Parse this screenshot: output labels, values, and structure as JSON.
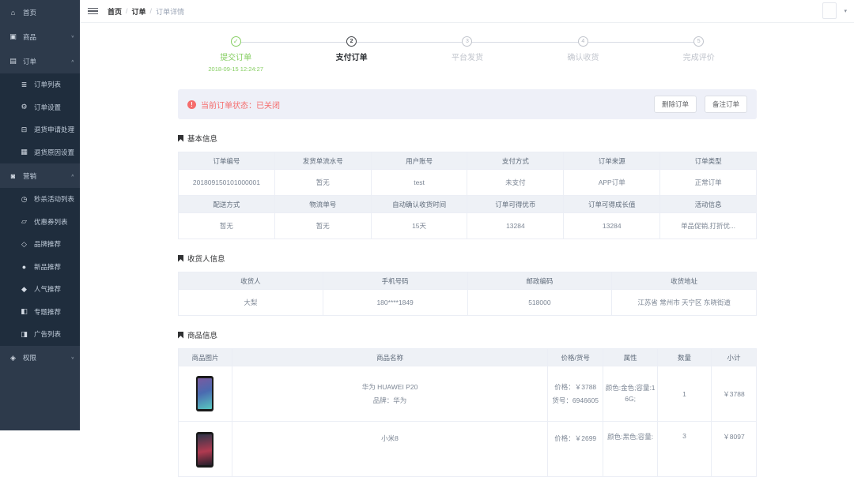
{
  "topbar": {
    "breadcrumb": [
      {
        "id": "home",
        "label": "首页",
        "current": false
      },
      {
        "id": "order",
        "label": "订单",
        "current": false
      },
      {
        "id": "order-detail",
        "label": "订单详情",
        "current": true
      }
    ],
    "breadcrumb_separator": "/",
    "user_caret": "▾"
  },
  "sidebar": {
    "items": [
      {
        "id": "home",
        "label": "首页",
        "icon": "home-icon",
        "glyph": "⌂",
        "type": "root",
        "chevron": ""
      },
      {
        "id": "goods",
        "label": "商品",
        "icon": "goods-icon",
        "glyph": "▣",
        "type": "root",
        "chevron": "down"
      },
      {
        "id": "order",
        "label": "订单",
        "icon": "order-icon",
        "glyph": "▤",
        "type": "root",
        "chevron": "up"
      },
      {
        "id": "order-list",
        "label": "订单列表",
        "icon": "order-list-icon",
        "glyph": "≣",
        "type": "sub",
        "chevron": ""
      },
      {
        "id": "order-setting",
        "label": "订单设置",
        "icon": "order-setting-icon",
        "glyph": "⚙",
        "type": "sub",
        "chevron": ""
      },
      {
        "id": "return-apply",
        "label": "退货申请处理",
        "icon": "return-apply-icon",
        "glyph": "⊟",
        "type": "sub",
        "chevron": ""
      },
      {
        "id": "return-reason",
        "label": "退货原因设置",
        "icon": "return-reason-icon",
        "glyph": "▦",
        "type": "sub",
        "chevron": ""
      },
      {
        "id": "marketing",
        "label": "营销",
        "icon": "marketing-icon",
        "glyph": "◙",
        "type": "root",
        "chevron": "up"
      },
      {
        "id": "flash-list",
        "label": "秒杀活动列表",
        "icon": "flash-sale-icon",
        "glyph": "◷",
        "type": "sub",
        "chevron": ""
      },
      {
        "id": "coupon-list",
        "label": "优惠券列表",
        "icon": "coupon-icon",
        "glyph": "▱",
        "type": "sub",
        "chevron": ""
      },
      {
        "id": "brand",
        "label": "品牌推荐",
        "icon": "brand-tag-icon",
        "glyph": "◇",
        "type": "sub",
        "chevron": ""
      },
      {
        "id": "new-product",
        "label": "新品推荐",
        "icon": "new-product-icon",
        "glyph": "●",
        "type": "sub",
        "chevron": ""
      },
      {
        "id": "hot",
        "label": "人气推荐",
        "icon": "hot-icon",
        "glyph": "◆",
        "type": "sub",
        "chevron": ""
      },
      {
        "id": "subject",
        "label": "专题推荐",
        "icon": "subject-icon",
        "glyph": "◧",
        "type": "sub",
        "chevron": ""
      },
      {
        "id": "advertise",
        "label": "广告列表",
        "icon": "advertise-icon",
        "glyph": "◨",
        "type": "sub",
        "chevron": ""
      },
      {
        "id": "permission",
        "label": "权限",
        "icon": "permission-icon",
        "glyph": "◈",
        "type": "root",
        "chevron": "down"
      }
    ],
    "chevron_up": "∧",
    "chevron_down": "∨"
  },
  "steps": [
    {
      "num": "1",
      "label": "提交订单",
      "time": "2018-09-15 12:24:27",
      "state": "done",
      "glyph": "✓"
    },
    {
      "num": "2",
      "label": "支付订单",
      "time": "",
      "state": "active",
      "glyph": "2"
    },
    {
      "num": "3",
      "label": "平台发货",
      "time": "",
      "state": "pending",
      "glyph": "3"
    },
    {
      "num": "4",
      "label": "确认收货",
      "time": "",
      "state": "pending",
      "glyph": "4"
    },
    {
      "num": "5",
      "label": "完成评价",
      "time": "",
      "state": "pending",
      "glyph": "5"
    }
  ],
  "alert": {
    "icon_glyph": "!",
    "text": "当前订单状态：已关闭",
    "buttons": [
      {
        "id": "delete-order",
        "label": "删除订单"
      },
      {
        "id": "note-order",
        "label": "备注订单"
      }
    ]
  },
  "basic_info": {
    "title": "基本信息",
    "rows": [
      {
        "headers": [
          "订单编号",
          "发货单流水号",
          "用户账号",
          "支付方式",
          "订单来源",
          "订单类型"
        ],
        "values": [
          "201809150101000001",
          "暂无",
          "test",
          "未支付",
          "APP订单",
          "正常订单"
        ]
      },
      {
        "headers": [
          "配送方式",
          "物流单号",
          "自动确认收货时间",
          "订单可得优币",
          "订单可得成长值",
          "活动信息"
        ],
        "values": [
          "暂无",
          "暂无",
          "15天",
          "13284",
          "13284",
          "单品促销,打折优..."
        ]
      }
    ]
  },
  "recipient_info": {
    "title": "收货人信息",
    "headers": [
      "收货人",
      "手机号码",
      "邮政编码",
      "收货地址"
    ],
    "values": [
      "大梨",
      "180****1849",
      "518000",
      "江苏省 常州市 天宁区 东晓街道"
    ]
  },
  "product_info": {
    "title": "商品信息",
    "headers": [
      "商品图片",
      "商品名称",
      "价格/货号",
      "属性",
      "数量",
      "小计"
    ],
    "rows": [
      {
        "image": "huawei-p20-photo",
        "image_class": "p20",
        "name_lines": [
          "华为 HUAWEI P20",
          "品牌：华为"
        ],
        "price_lines": [
          "价格：￥3788",
          "货号：6946605"
        ],
        "attr": "颜色:金色;容量:16G;",
        "qty": "1",
        "subtotal": "￥3788"
      },
      {
        "image": "xiaomi-mi8-photo",
        "image_class": "mi8",
        "name_lines": [
          "小米8"
        ],
        "price_lines": [
          "价格：￥2699"
        ],
        "attr": "颜色:黑色;容量:",
        "qty": "3",
        "subtotal": "￥8097"
      }
    ]
  },
  "colors": {
    "sidebar_bg": "#2d3a4b",
    "submenu_bg": "#1f2d3d",
    "menu_text": "#bfcbd9",
    "accent_green": "#85ce61",
    "danger_red": "#f56c6c",
    "alert_bg": "#eef0f8",
    "table_header_bg": "#eef1f6",
    "table_border": "#ebeef5"
  }
}
